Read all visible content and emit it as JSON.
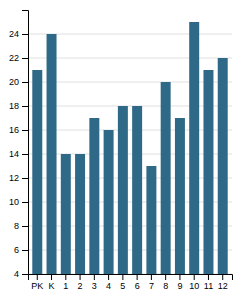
{
  "chart_data": {
    "type": "bar",
    "categories": [
      "PK",
      "K",
      "1",
      "2",
      "3",
      "4",
      "5",
      "6",
      "7",
      "8",
      "9",
      "10",
      "11",
      "12"
    ],
    "values": [
      21,
      24,
      14,
      14,
      17,
      16,
      18,
      18,
      13,
      20,
      17,
      25,
      21,
      22
    ],
    "color": "#2e6a87",
    "ylim": [
      4,
      26
    ],
    "yticks": [
      4,
      6,
      8,
      10,
      12,
      14,
      16,
      18,
      20,
      22,
      24
    ],
    "grid": true
  }
}
